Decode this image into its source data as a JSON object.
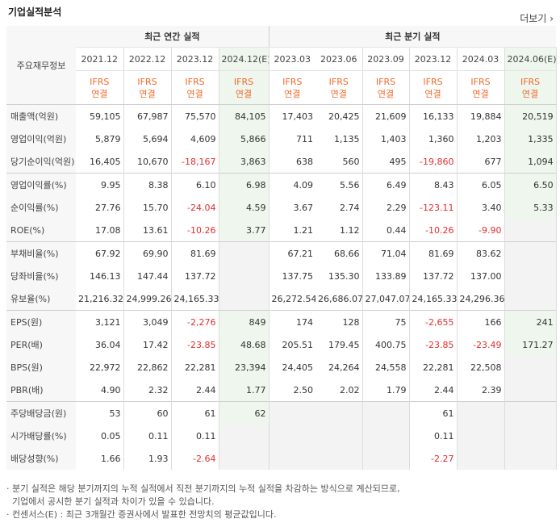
{
  "header": {
    "title": "기업실적분석",
    "more": "더보기"
  },
  "table": {
    "corner_label": "주요재무정보",
    "group_annual": "최근 연간 실적",
    "group_quarter": "최근 분기 실적",
    "periods": [
      "2021.12",
      "2022.12",
      "2023.12",
      "2024.12(E)",
      "2023.03",
      "2023.06",
      "2023.09",
      "2023.12",
      "2024.03",
      "2024.06(E)"
    ],
    "ifrs_top": "IFRS",
    "ifrs_bottom": "연결",
    "rows": [
      {
        "label": "매출액(억원)",
        "values": [
          "59,105",
          "67,987",
          "75,570",
          "84,105",
          "17,403",
          "20,425",
          "21,609",
          "16,133",
          "19,884",
          "20,519"
        ]
      },
      {
        "label": "영업이익(억원)",
        "values": [
          "5,879",
          "5,694",
          "4,609",
          "5,866",
          "711",
          "1,135",
          "1,403",
          "1,360",
          "1,203",
          "1,335"
        ]
      },
      {
        "label": "당기순이익(억원)",
        "values": [
          "16,405",
          "10,670",
          "-18,167",
          "3,863",
          "638",
          "560",
          "495",
          "-19,860",
          "677",
          "1,094"
        ]
      },
      {
        "label": "영업이익률(%)",
        "values": [
          "9.95",
          "8.38",
          "6.10",
          "6.98",
          "4.09",
          "5.56",
          "6.49",
          "8.43",
          "6.05",
          "6.50"
        ]
      },
      {
        "label": "순이익률(%)",
        "values": [
          "27.76",
          "15.70",
          "-24.04",
          "4.59",
          "3.67",
          "2.74",
          "2.29",
          "-123.11",
          "3.40",
          "5.33"
        ]
      },
      {
        "label": "ROE(%)",
        "values": [
          "17.08",
          "13.61",
          "-10.26",
          "3.77",
          "1.21",
          "1.12",
          "0.44",
          "-10.26",
          "-9.90",
          ""
        ]
      },
      {
        "label": "부채비율(%)",
        "values": [
          "67.92",
          "69.90",
          "81.69",
          "",
          "67.21",
          "68.66",
          "71.04",
          "81.69",
          "83.62",
          ""
        ]
      },
      {
        "label": "당좌비율(%)",
        "values": [
          "146.13",
          "147.44",
          "137.72",
          "",
          "137.75",
          "135.30",
          "133.89",
          "137.72",
          "137.00",
          ""
        ]
      },
      {
        "label": "유보율(%)",
        "values": [
          "21,216.32",
          "24,999.26",
          "24,165.33",
          "",
          "26,272.54",
          "26,686.07",
          "27,047.07",
          "24,165.33",
          "24,296.36",
          ""
        ]
      },
      {
        "label": "EPS(원)",
        "values": [
          "3,121",
          "3,049",
          "-2,276",
          "849",
          "174",
          "128",
          "75",
          "-2,655",
          "166",
          "241"
        ]
      },
      {
        "label": "PER(배)",
        "values": [
          "36.04",
          "17.42",
          "-23.85",
          "48.68",
          "205.51",
          "179.45",
          "400.75",
          "-23.85",
          "-23.49",
          "171.27"
        ]
      },
      {
        "label": "BPS(원)",
        "values": [
          "22,972",
          "22,862",
          "22,281",
          "23,394",
          "24,405",
          "24,264",
          "24,558",
          "22,281",
          "22,508",
          ""
        ]
      },
      {
        "label": "PBR(배)",
        "values": [
          "4.90",
          "2.32",
          "2.44",
          "1.77",
          "2.50",
          "2.02",
          "1.79",
          "2.44",
          "2.39",
          ""
        ]
      },
      {
        "label": "주당배당금(원)",
        "values": [
          "53",
          "60",
          "61",
          "62",
          "",
          "",
          "",
          "61",
          "",
          ""
        ]
      },
      {
        "label": "시가배당률(%)",
        "values": [
          "0.05",
          "0.11",
          "0.11",
          "",
          "",
          "",
          "",
          "0.11",
          "",
          ""
        ]
      },
      {
        "label": "배당성향(%)",
        "values": [
          "1.66",
          "1.93",
          "-2.64",
          "",
          "",
          "",
          "",
          "-2.27",
          "",
          ""
        ]
      }
    ]
  },
  "footnotes": [
    "· 분기 실적은 해당 분기까지의 누적 실적에서 직전 분기까지의 누적 실적을 차감하는 방식으로 계산되므로,",
    "  기업에서 공시한 분기 실적과 차이가 있을 수 있습니다.",
    "· 컨센서스(E) : 최근 3개월간 증권사에서 발표한 전망치의 평균값입니다."
  ],
  "colors": {
    "ifrs": "#f06a2a",
    "negative": "#e32d2d",
    "estimate_bg": "#eef6ee",
    "label_bg": "#f7f7f7"
  }
}
